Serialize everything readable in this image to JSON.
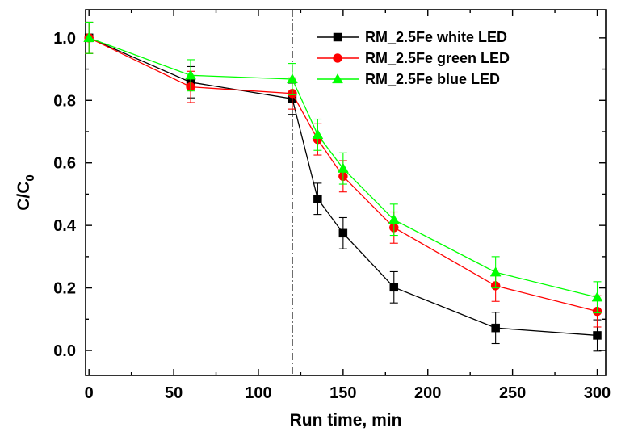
{
  "chart_data": {
    "type": "line",
    "xlabel": "Run time, min",
    "ylabel_main": "C/C",
    "ylabel_sub": "0",
    "xlim": [
      -2,
      305
    ],
    "ylim": [
      -0.08,
      1.09
    ],
    "xticks": [
      0,
      50,
      100,
      150,
      200,
      250,
      300
    ],
    "xtick_labels": [
      "0",
      "50",
      "100",
      "150",
      "200",
      "250",
      "300"
    ],
    "yticks": [
      0.0,
      0.2,
      0.4,
      0.6,
      0.8,
      1.0
    ],
    "ytick_labels": [
      "0.0",
      "0.2",
      "0.4",
      "0.6",
      "0.8",
      "1.0"
    ],
    "x_minor_step": 25,
    "y_minor_step": 0.1,
    "vline_x": 120,
    "legend_position": "top-right",
    "grid": false,
    "x": [
      0,
      60,
      120,
      135,
      150,
      180,
      240,
      300
    ],
    "series": [
      {
        "name": "RM_2.5Fe white LED",
        "color": "#000000",
        "marker": "square",
        "values": [
          1.0,
          0.858,
          0.805,
          0.485,
          0.375,
          0.202,
          0.072,
          0.048
        ],
        "errors": [
          0.05,
          0.05,
          0.05,
          0.05,
          0.05,
          0.05,
          0.05,
          0.05
        ]
      },
      {
        "name": "RM_2.5Fe green LED",
        "color": "#ff0000",
        "marker": "circle",
        "values": [
          1.0,
          0.843,
          0.822,
          0.675,
          0.557,
          0.393,
          0.207,
          0.125
        ],
        "errors": [
          0.05,
          0.05,
          0.05,
          0.05,
          0.05,
          0.05,
          0.05,
          0.05
        ]
      },
      {
        "name": "RM_2.5Fe blue LED",
        "color": "#00ff00",
        "marker": "triangle",
        "values": [
          1.0,
          0.88,
          0.868,
          0.69,
          0.582,
          0.418,
          0.25,
          0.17
        ],
        "errors": [
          0.05,
          0.05,
          0.05,
          0.05,
          0.05,
          0.05,
          0.05,
          0.05
        ]
      }
    ]
  }
}
